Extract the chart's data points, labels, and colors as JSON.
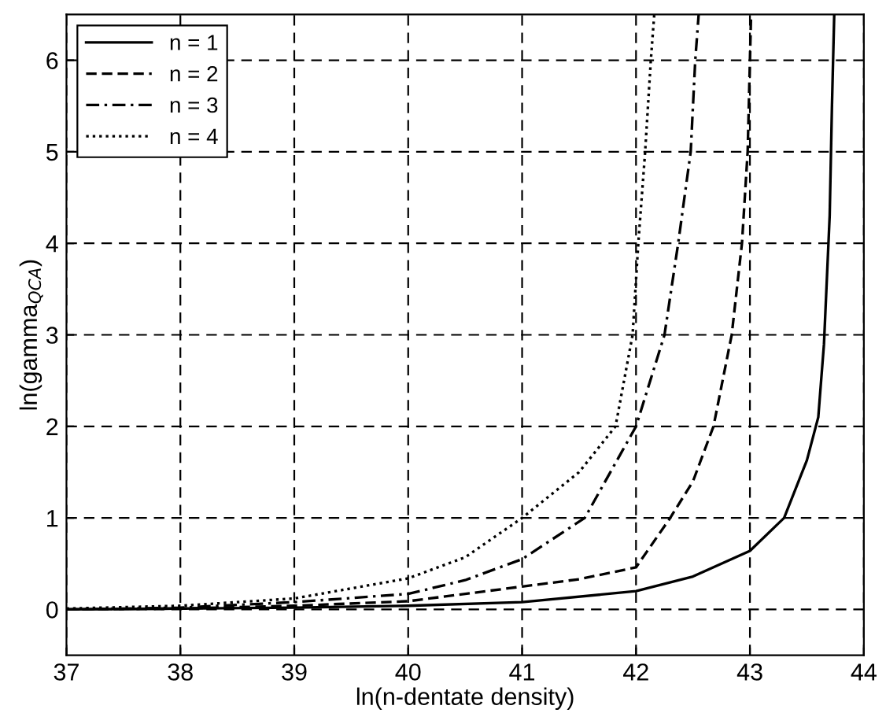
{
  "chart_data": {
    "type": "line",
    "xlabel": "ln(n-dentate density)",
    "ylabel": "ln(gamma$_{QCA}$)",
    "xlim": [
      37,
      44
    ],
    "ylim": [
      -0.5,
      6.5
    ],
    "xticks": [
      37,
      38,
      39,
      40,
      41,
      42,
      43,
      44
    ],
    "yticks": [
      0,
      1,
      2,
      3,
      4,
      5,
      6
    ],
    "grid": true,
    "legend": "top left",
    "series": [
      {
        "name": "n = 1",
        "color": "#000000",
        "line_style": "solid",
        "x": [
          37,
          38,
          39,
          40,
          41,
          42,
          42.5,
          43,
          43.3,
          43.5,
          43.6,
          43.65,
          43.7,
          43.72,
          43.74
        ],
        "values": [
          0,
          0.01,
          0.02,
          0.04,
          0.08,
          0.2,
          0.36,
          0.64,
          1.0,
          1.63,
          2.1,
          2.9,
          4.3,
          5.5,
          6.5
        ]
      },
      {
        "name": "n = 2",
        "color": "#000000",
        "line_style": "dashed",
        "x": [
          37,
          38,
          39,
          40,
          41,
          41.5,
          42,
          42.3,
          42.5,
          42.68,
          42.84,
          42.93,
          42.98,
          43.0,
          43.01
        ],
        "values": [
          0,
          0.01,
          0.04,
          0.09,
          0.25,
          0.33,
          0.46,
          1.0,
          1.4,
          2,
          3,
          4,
          5,
          6,
          6.5
        ]
      },
      {
        "name": "n = 3",
        "color": "#000000",
        "line_style": "dashdot",
        "x": [
          37,
          38,
          39,
          40,
          40.5,
          41,
          41.55,
          42.0,
          42.25,
          42.37,
          42.48,
          42.52,
          42.55
        ],
        "values": [
          0,
          0.02,
          0.08,
          0.17,
          0.32,
          0.55,
          1,
          2,
          3,
          4,
          5,
          6,
          6.5
        ]
      },
      {
        "name": "n = 4",
        "color": "#000000",
        "line_style": "dotted",
        "x": [
          37,
          38,
          39,
          40,
          40.5,
          41,
          41.5,
          41.82,
          41.97,
          42.02,
          42.08,
          42.13,
          42.16
        ],
        "values": [
          0.01,
          0.04,
          0.12,
          0.34,
          0.57,
          1.0,
          1.5,
          2,
          3,
          4,
          5,
          6,
          6.5
        ]
      }
    ]
  }
}
